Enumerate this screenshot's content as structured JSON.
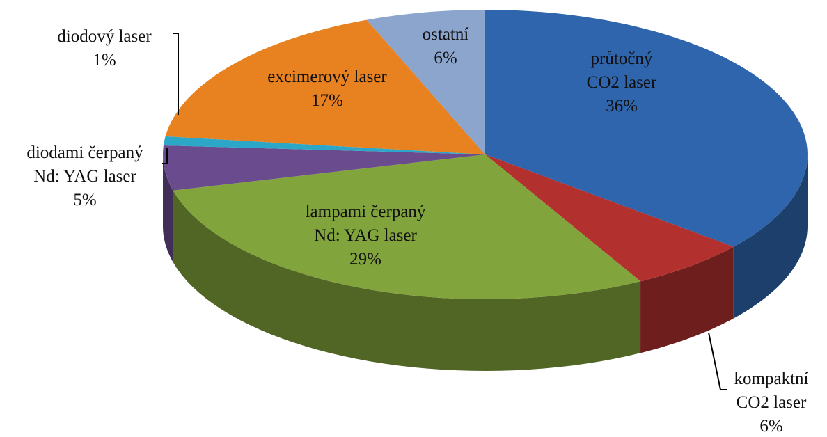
{
  "chart_data": {
    "type": "pie",
    "categories": [
      "průtočný\nCO2 laser",
      "kompaktní\nCO2 laser",
      "lampami čerpaný\nNd: YAG laser",
      "diodami čerpaný\nNd: YAG laser",
      "diodový laser",
      "excimerový laser",
      "ostatní"
    ],
    "values": [
      36,
      6,
      29,
      5,
      1,
      17,
      6
    ],
    "value_labels": [
      "36%",
      "6%",
      "29%",
      "5%",
      "1%",
      "17%",
      "6%"
    ],
    "colors": [
      "#2f65ad",
      "#b2312f",
      "#82a43c",
      "#6a4b8e",
      "#2ca7c8",
      "#e8811f",
      "#8ba5cd"
    ]
  }
}
